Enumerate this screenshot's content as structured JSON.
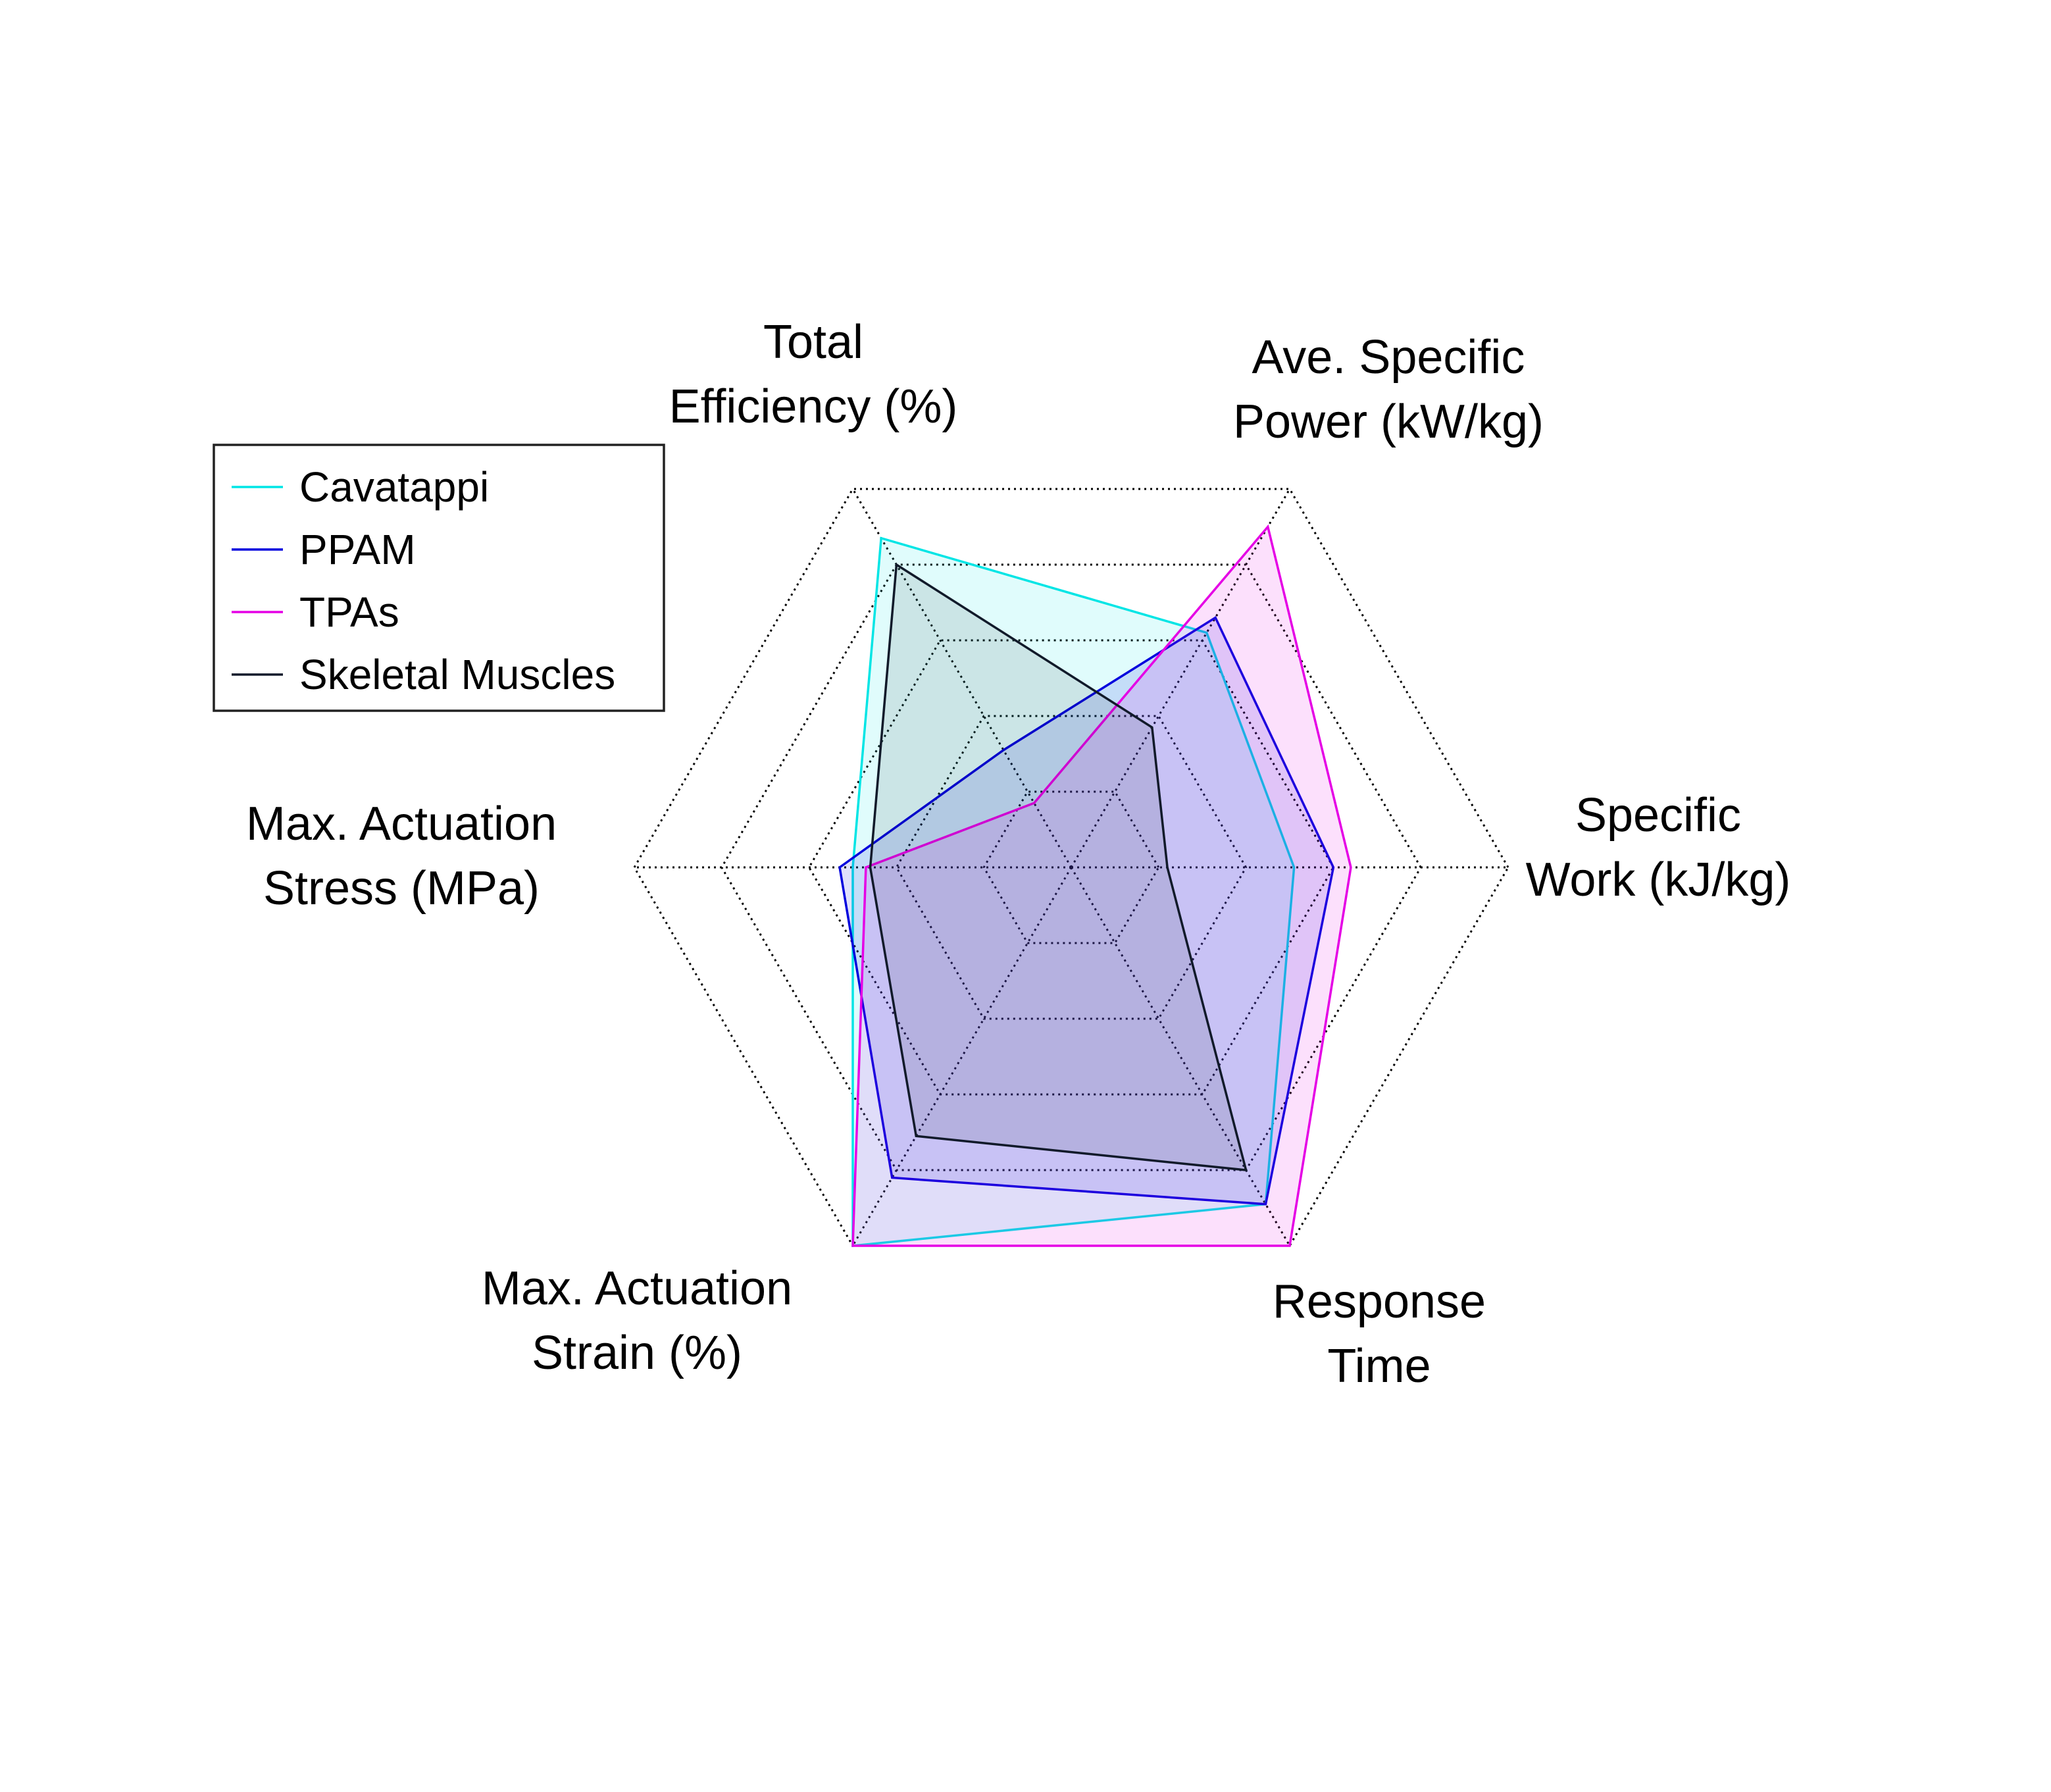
{
  "chart_data": {
    "type": "radar",
    "axes": [
      {
        "label_lines": [
          "Specific",
          "Work (kJ/kg)"
        ]
      },
      {
        "label_lines": [
          "Ave. Specific",
          "Power (kW/kg)"
        ]
      },
      {
        "label_lines": [
          "Total",
          "Efficiency (%)"
        ]
      },
      {
        "label_lines": [
          "Max. Actuation",
          "Stress (MPa)"
        ]
      },
      {
        "label_lines": [
          "Max. Actuation",
          "Strain (%)"
        ]
      },
      {
        "label_lines": [
          "Response",
          "Time"
        ]
      }
    ],
    "rings": 5,
    "rmax": 5,
    "grid": "dotted",
    "legend_position": "top-left",
    "series": [
      {
        "name": "Cavatappi",
        "color": "#00e5e5",
        "fill_opacity": 0.12,
        "values": [
          2.55,
          3.1,
          4.35,
          2.5,
          5.0,
          4.45
        ]
      },
      {
        "name": "PPAM",
        "color": "#0000dd",
        "fill_opacity": 0.12,
        "values": [
          3.0,
          3.3,
          1.55,
          2.65,
          4.1,
          4.45
        ]
      },
      {
        "name": "TPAs",
        "color": "#e500e5",
        "fill_opacity": 0.12,
        "values": [
          3.2,
          4.5,
          0.85,
          2.35,
          5.0,
          5.0
        ]
      },
      {
        "name": "Skeletal Muscles",
        "color": "#111a2a",
        "fill_opacity": 0.1,
        "values": [
          1.1,
          1.85,
          4.0,
          2.3,
          3.55,
          4.0
        ]
      }
    ]
  }
}
